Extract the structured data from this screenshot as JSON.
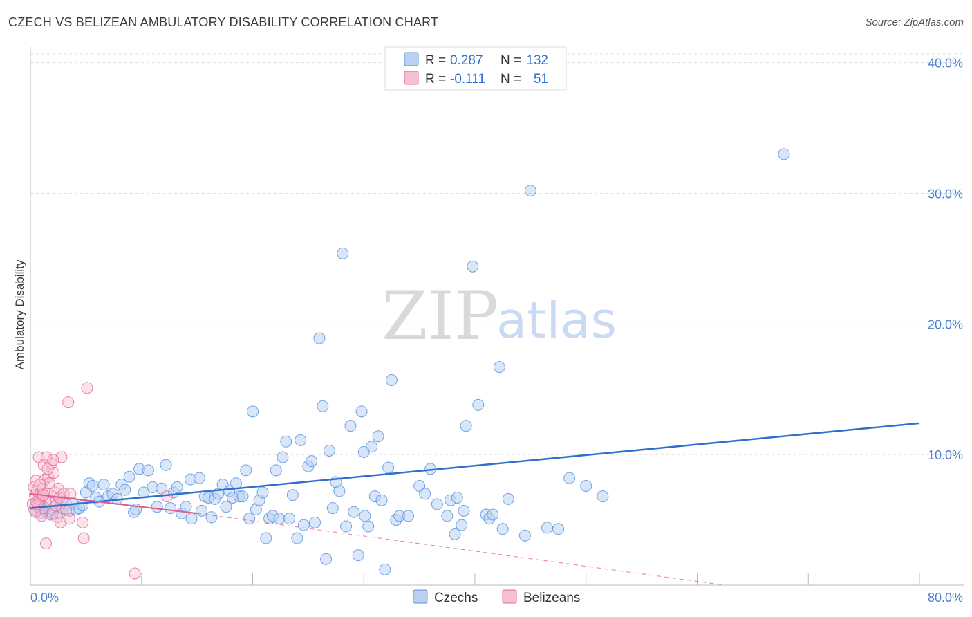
{
  "title": "CZECH VS BELIZEAN AMBULATORY DISABILITY CORRELATION CHART",
  "source": "Source: ZipAtlas.com",
  "watermark": {
    "zip": "ZIP",
    "atlas": "atlas"
  },
  "colors": {
    "czechs": "#5b93e0",
    "czechs_fill": "#b8d1f3",
    "belizeans": "#e86a96",
    "belizeans_fill": "#f6bfd2",
    "trend_czechs": "#2f6fd0",
    "trend_belizeans": "#e05a8a",
    "grid": "#dddddd",
    "tick_text": "#4a7fd4"
  },
  "legend_box": {
    "rows": [
      {
        "r_label": "R =",
        "r_value": "0.287",
        "n_label": "N =",
        "n_value": "132"
      },
      {
        "r_label": "R =",
        "r_value": "-0.111",
        "n_label": "N =",
        "n_value": "51"
      }
    ]
  },
  "chart_data": {
    "type": "scatter",
    "title": "CZECH VS BELIZEAN AMBULATORY DISABILITY CORRELATION CHART",
    "ylabel": "Ambulatory Disability",
    "xlabel": "",
    "xlim": [
      0,
      80
    ],
    "ylim": [
      0,
      41.2
    ],
    "x_tick_labels": [
      "0.0%",
      "80.0%"
    ],
    "y_tick_values": [
      10,
      20,
      30,
      40
    ],
    "y_tick_labels": [
      "10.0%",
      "20.0%",
      "30.0%",
      "40.0%"
    ],
    "grid": true,
    "legend_placement": "top-center",
    "series": [
      {
        "name": "Czechs",
        "color": "#5b93e0",
        "trend": {
          "x": [
            0,
            80
          ],
          "y": [
            5.9,
            12.4
          ]
        },
        "points": [
          [
            0.5,
            5.7
          ],
          [
            0.8,
            6.3
          ],
          [
            1.0,
            5.5
          ],
          [
            1.2,
            6.0
          ],
          [
            1.5,
            5.6
          ],
          [
            1.8,
            5.4
          ],
          [
            2.0,
            5.8
          ],
          [
            2.3,
            6.4
          ],
          [
            2.6,
            5.5
          ],
          [
            2.9,
            5.9
          ],
          [
            3.2,
            6.2
          ],
          [
            3.5,
            5.7
          ],
          [
            3.8,
            6.3
          ],
          [
            4.1,
            5.8
          ],
          [
            4.4,
            5.9
          ],
          [
            4.7,
            6.1
          ],
          [
            5.0,
            7.1
          ],
          [
            5.3,
            7.8
          ],
          [
            5.6,
            7.6
          ],
          [
            5.9,
            6.7
          ],
          [
            6.2,
            6.4
          ],
          [
            6.6,
            7.7
          ],
          [
            7.0,
            6.8
          ],
          [
            7.4,
            7.0
          ],
          [
            7.8,
            6.6
          ],
          [
            8.2,
            7.7
          ],
          [
            8.5,
            7.3
          ],
          [
            8.9,
            8.3
          ],
          [
            9.3,
            5.6
          ],
          [
            9.5,
            5.8
          ],
          [
            9.8,
            8.9
          ],
          [
            10.2,
            7.1
          ],
          [
            10.6,
            8.8
          ],
          [
            11.0,
            7.5
          ],
          [
            11.4,
            6.0
          ],
          [
            11.8,
            7.4
          ],
          [
            12.2,
            9.2
          ],
          [
            12.6,
            5.9
          ],
          [
            12.9,
            7.1
          ],
          [
            13.2,
            7.5
          ],
          [
            13.6,
            5.5
          ],
          [
            14.0,
            6.0
          ],
          [
            14.4,
            8.1
          ],
          [
            14.5,
            5.1
          ],
          [
            15.2,
            8.2
          ],
          [
            15.4,
            5.7
          ],
          [
            15.7,
            6.8
          ],
          [
            16.0,
            6.7
          ],
          [
            16.3,
            5.2
          ],
          [
            16.6,
            6.6
          ],
          [
            16.9,
            7.0
          ],
          [
            17.3,
            7.7
          ],
          [
            17.6,
            6.0
          ],
          [
            17.9,
            7.2
          ],
          [
            18.2,
            6.7
          ],
          [
            18.5,
            7.8
          ],
          [
            18.8,
            6.8
          ],
          [
            19.1,
            6.8
          ],
          [
            19.4,
            8.8
          ],
          [
            19.7,
            5.1
          ],
          [
            20.0,
            13.3
          ],
          [
            20.3,
            5.8
          ],
          [
            20.6,
            6.5
          ],
          [
            20.9,
            7.1
          ],
          [
            21.2,
            3.6
          ],
          [
            21.5,
            5.1
          ],
          [
            21.8,
            5.3
          ],
          [
            22.1,
            8.8
          ],
          [
            22.4,
            5.1
          ],
          [
            22.7,
            9.8
          ],
          [
            23.0,
            11.0
          ],
          [
            23.3,
            5.1
          ],
          [
            23.6,
            6.9
          ],
          [
            24.0,
            3.6
          ],
          [
            24.3,
            11.1
          ],
          [
            24.6,
            4.6
          ],
          [
            25.0,
            9.1
          ],
          [
            25.3,
            9.5
          ],
          [
            25.6,
            4.8
          ],
          [
            26.0,
            18.9
          ],
          [
            26.3,
            13.7
          ],
          [
            26.6,
            2.0
          ],
          [
            26.9,
            10.3
          ],
          [
            27.2,
            5.9
          ],
          [
            27.5,
            7.9
          ],
          [
            27.8,
            7.2
          ],
          [
            28.1,
            25.4
          ],
          [
            28.4,
            4.5
          ],
          [
            28.8,
            12.2
          ],
          [
            29.1,
            5.6
          ],
          [
            29.5,
            2.3
          ],
          [
            29.8,
            13.3
          ],
          [
            30.1,
            5.3
          ],
          [
            30.4,
            4.5
          ],
          [
            30.7,
            10.6
          ],
          [
            31.0,
            6.8
          ],
          [
            31.3,
            11.4
          ],
          [
            31.6,
            6.5
          ],
          [
            31.9,
            1.2
          ],
          [
            32.2,
            9.0
          ],
          [
            32.5,
            15.7
          ],
          [
            32.9,
            5.0
          ],
          [
            33.2,
            5.3
          ],
          [
            34.0,
            5.3
          ],
          [
            35.0,
            7.6
          ],
          [
            35.5,
            7.0
          ],
          [
            36.0,
            8.9
          ],
          [
            36.6,
            6.2
          ],
          [
            37.5,
            5.3
          ],
          [
            37.8,
            6.5
          ],
          [
            38.2,
            3.9
          ],
          [
            38.8,
            4.6
          ],
          [
            39.0,
            5.7
          ],
          [
            39.2,
            12.2
          ],
          [
            39.8,
            24.4
          ],
          [
            40.3,
            13.8
          ],
          [
            41.0,
            5.4
          ],
          [
            41.3,
            5.1
          ],
          [
            41.6,
            5.4
          ],
          [
            42.2,
            16.7
          ],
          [
            44.5,
            3.8
          ],
          [
            46.5,
            4.4
          ],
          [
            47.5,
            4.3
          ],
          [
            48.5,
            8.2
          ],
          [
            50.0,
            7.6
          ],
          [
            51.5,
            6.8
          ],
          [
            42.5,
            4.3
          ],
          [
            38.4,
            6.7
          ],
          [
            30.0,
            10.2
          ],
          [
            45.0,
            30.2
          ],
          [
            67.8,
            33.0
          ],
          [
            43.0,
            6.6
          ]
        ]
      },
      {
        "name": "Belizeans",
        "color": "#e86a96",
        "trend": {
          "x": [
            0,
            15
          ],
          "y": [
            7.0,
            5.5
          ]
        },
        "trend_dashed": {
          "x": [
            15,
            62.5
          ],
          "y": [
            5.5,
            0.0
          ]
        },
        "points": [
          [
            0.2,
            6.2
          ],
          [
            0.3,
            7.5
          ],
          [
            0.35,
            5.8
          ],
          [
            0.4,
            6.9
          ],
          [
            0.5,
            8.0
          ],
          [
            0.55,
            6.4
          ],
          [
            0.6,
            7.2
          ],
          [
            0.7,
            6.0
          ],
          [
            0.75,
            9.8
          ],
          [
            0.8,
            6.6
          ],
          [
            0.9,
            7.0
          ],
          [
            1.0,
            5.3
          ],
          [
            1.05,
            6.8
          ],
          [
            1.1,
            7.4
          ],
          [
            1.2,
            9.2
          ],
          [
            1.25,
            5.9
          ],
          [
            1.3,
            8.1
          ],
          [
            1.35,
            6.5
          ],
          [
            1.4,
            3.2
          ],
          [
            1.45,
            9.8
          ],
          [
            1.5,
            7.0
          ],
          [
            1.6,
            8.3
          ],
          [
            1.7,
            7.8
          ],
          [
            1.8,
            6.3
          ],
          [
            1.9,
            9.3
          ],
          [
            2.0,
            5.5
          ],
          [
            2.1,
            8.6
          ],
          [
            2.2,
            7.1
          ],
          [
            2.3,
            6.1
          ],
          [
            2.4,
            5.2
          ],
          [
            2.5,
            7.4
          ],
          [
            2.6,
            6.7
          ],
          [
            2.7,
            4.8
          ],
          [
            2.8,
            9.8
          ],
          [
            2.9,
            6.4
          ],
          [
            3.0,
            7.0
          ],
          [
            3.2,
            5.8
          ],
          [
            3.4,
            14.0
          ],
          [
            3.5,
            5.1
          ],
          [
            3.6,
            7.0
          ],
          [
            4.7,
            4.8
          ],
          [
            4.8,
            3.6
          ],
          [
            5.1,
            15.1
          ],
          [
            9.4,
            0.9
          ],
          [
            12.3,
            6.8
          ],
          [
            0.45,
            5.6
          ],
          [
            0.65,
            6.2
          ],
          [
            0.85,
            7.7
          ],
          [
            1.15,
            6.9
          ],
          [
            1.55,
            8.9
          ],
          [
            2.05,
            9.6
          ]
        ]
      }
    ]
  }
}
